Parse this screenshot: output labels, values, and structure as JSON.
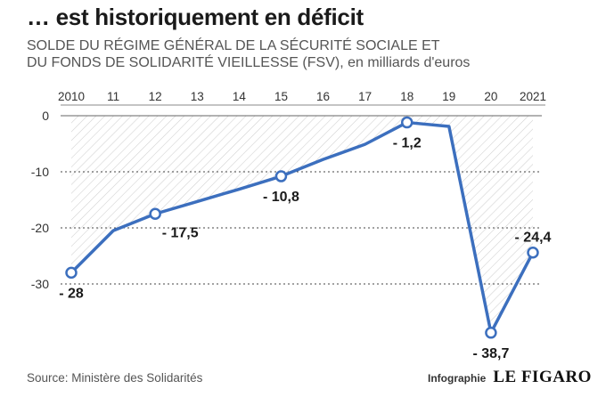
{
  "header": {
    "title": "… est historiquement en déficit",
    "subtitle_line1": "SOLDE DU RÉGIME GÉNÉRAL DE LA SÉCURITÉ SOCIALE ET",
    "subtitle_line2": "DU FONDS DE SOLIDARITÉ VIEILLESSE (FSV), en milliards d'euros"
  },
  "footer": {
    "source": "Source: Ministère des Solidarités",
    "credit_label": "Infographie",
    "credit_brand": "LE FIGARO"
  },
  "colors": {
    "line": "#3c6fbe",
    "grid": "#444444",
    "hatch": "#cfcfcf",
    "marker_fill": "#ffffff"
  },
  "chart_data": {
    "type": "line",
    "x_tick_labels": [
      "2010",
      "11",
      "12",
      "13",
      "14",
      "15",
      "16",
      "17",
      "18",
      "19",
      "20",
      "2021"
    ],
    "x": [
      2010,
      2011,
      2012,
      2013,
      2014,
      2015,
      2016,
      2017,
      2018,
      2019,
      2020,
      2021
    ],
    "y": [
      -28,
      -20.5,
      -17.5,
      -15.3,
      -13.1,
      -10.8,
      -7.8,
      -5.1,
      -1.2,
      -1.9,
      -38.7,
      -24.4
    ],
    "y_ticks": [
      0,
      -10,
      -20,
      -30
    ],
    "ylim": [
      -40,
      0
    ],
    "x_axis_position": "top",
    "grid": "dotted horizontal",
    "area_fill": "hatched between line and zero",
    "labels": [
      {
        "year": 2010,
        "text": "- 28",
        "position": "below"
      },
      {
        "year": 2012,
        "text": "- 17,5",
        "position": "below-right"
      },
      {
        "year": 2015,
        "text": "- 10,8",
        "position": "below"
      },
      {
        "year": 2018,
        "text": "- 1,2",
        "position": "below"
      },
      {
        "year": 2020,
        "text": "- 38,7",
        "position": "below"
      },
      {
        "year": 2021,
        "text": "- 24,4",
        "position": "above"
      }
    ]
  }
}
